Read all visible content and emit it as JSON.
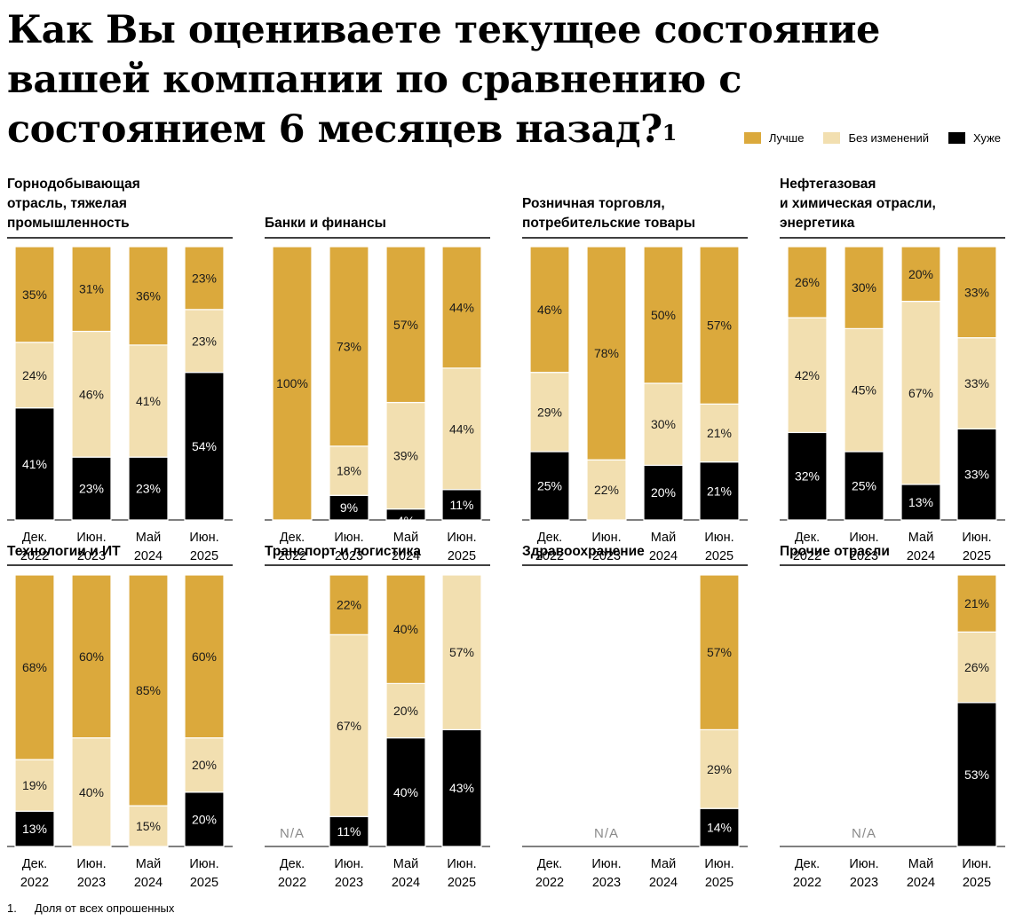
{
  "title": "Как Вы оцениваете текущее состояние вашей компании по сравнению с состоянием 6 месяцев назад?",
  "title_footnote_mark": "1",
  "legend": [
    {
      "label": "Лучше",
      "color": "#dba93c"
    },
    {
      "label": "Без изменений",
      "color": "#f2dfb0"
    },
    {
      "label": "Хуже",
      "color": "#000000"
    }
  ],
  "footnote": {
    "number": "1.",
    "text": "Доля от всех опрошенных"
  },
  "chart_data": {
    "type": "bar",
    "stacked": true,
    "unit": "%",
    "categories": [
      "Дек. 2022",
      "Июн. 2023",
      "Май 2024",
      "Июн. 2025"
    ],
    "series_names": [
      "Хуже",
      "Без изменений",
      "Лучше"
    ],
    "na_label": "N/A",
    "panels": [
      {
        "title": "Горнодобывающая отрасль, тяжелая промышленность",
        "bars": [
          {
            "worse": 41,
            "same": 24,
            "better": 35
          },
          {
            "worse": 23,
            "same": 46,
            "better": 31
          },
          {
            "worse": 23,
            "same": 41,
            "better": 36
          },
          {
            "worse": 54,
            "same": 23,
            "better": 23
          }
        ]
      },
      {
        "title": "Банки и финансы",
        "bars": [
          {
            "worse": 0,
            "same": 0,
            "better": 100
          },
          {
            "worse": 9,
            "same": 18,
            "better": 73
          },
          {
            "worse": 4,
            "same": 39,
            "better": 57
          },
          {
            "worse": 11,
            "same": 44,
            "better": 44
          }
        ]
      },
      {
        "title": "Розничная торговля, потребительские товары",
        "bars": [
          {
            "worse": 25,
            "same": 29,
            "better": 46
          },
          {
            "worse": 0,
            "same": 22,
            "better": 78
          },
          {
            "worse": 20,
            "same": 30,
            "better": 50
          },
          {
            "worse": 21,
            "same": 21,
            "better": 57
          }
        ]
      },
      {
        "title": "Нефтегазовая и химическая отрасли, энергетика",
        "bars": [
          {
            "worse": 32,
            "same": 42,
            "better": 26
          },
          {
            "worse": 25,
            "same": 45,
            "better": 30
          },
          {
            "worse": 13,
            "same": 67,
            "better": 20
          },
          {
            "worse": 33,
            "same": 33,
            "better": 33
          }
        ]
      },
      {
        "title": "Технологии и ИТ",
        "bars": [
          {
            "worse": 13,
            "same": 19,
            "better": 68
          },
          {
            "worse": 0,
            "same": 40,
            "better": 60
          },
          {
            "worse": 0,
            "same": 15,
            "better": 85
          },
          {
            "worse": 20,
            "same": 20,
            "better": 60
          }
        ]
      },
      {
        "title": "Транспорт и логистика",
        "na": [
          0
        ],
        "bars": [
          null,
          {
            "worse": 11,
            "same": 67,
            "better": 22
          },
          {
            "worse": 40,
            "same": 20,
            "better": 40
          },
          {
            "worse": 43,
            "same": 57,
            "better": 0
          }
        ]
      },
      {
        "title": "Здравоохранение",
        "na": [
          0,
          1,
          2
        ],
        "bars": [
          null,
          null,
          null,
          {
            "worse": 14,
            "same": 29,
            "better": 57
          }
        ]
      },
      {
        "title": "Прочие отрасли",
        "na": [
          0,
          1,
          2
        ],
        "bars": [
          null,
          null,
          null,
          {
            "worse": 53,
            "same": 26,
            "better": 21
          }
        ]
      }
    ]
  }
}
